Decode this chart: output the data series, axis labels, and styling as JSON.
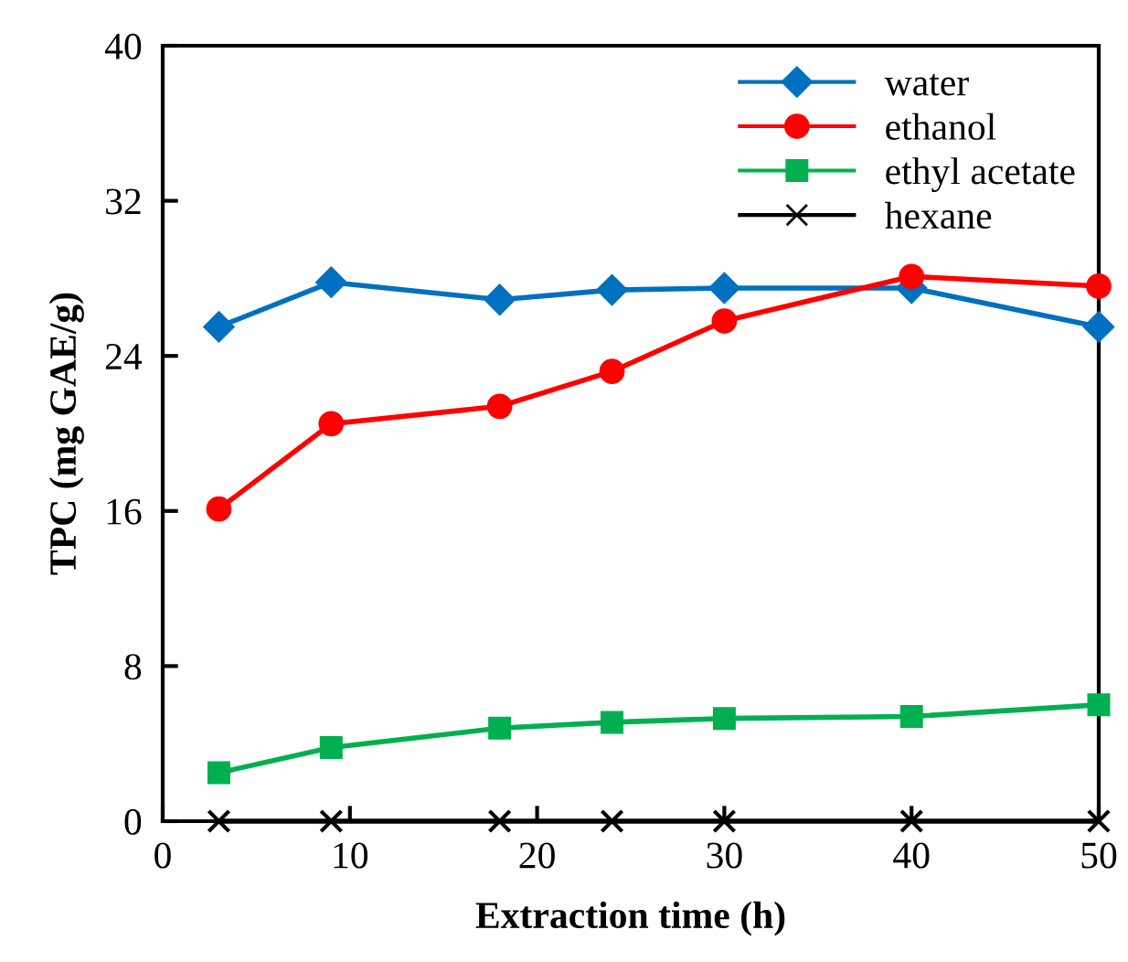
{
  "chart_data": {
    "type": "line",
    "xlabel": "Extraction time (h)",
    "ylabel": "TPC (mg GAE/g)",
    "x": [
      3,
      9,
      18,
      24,
      30,
      40,
      50
    ],
    "series": [
      {
        "name": "water",
        "color": "#0070c0",
        "marker": "diamond",
        "values": [
          25.5,
          27.8,
          26.9,
          27.4,
          27.5,
          27.5,
          25.5
        ]
      },
      {
        "name": "ethanol",
        "color": "#ff0000",
        "marker": "circle",
        "values": [
          16.1,
          20.5,
          21.4,
          23.2,
          25.8,
          28.1,
          27.6
        ]
      },
      {
        "name": "ethyl acetate",
        "color": "#00b050",
        "marker": "square",
        "values": [
          2.5,
          3.8,
          4.8,
          5.1,
          5.3,
          5.4,
          6.0
        ]
      },
      {
        "name": "hexane",
        "color": "#000000",
        "marker": "cross",
        "values": [
          0,
          0,
          0,
          0,
          0,
          0,
          0
        ]
      }
    ],
    "xlim": [
      0,
      50
    ],
    "xticks": [
      0,
      10,
      20,
      30,
      40,
      50
    ],
    "ylim": [
      0,
      40
    ],
    "yticks": [
      0,
      8,
      16,
      24,
      32,
      40
    ],
    "grid": false,
    "legend": "top right",
    "line_style": "solid"
  }
}
